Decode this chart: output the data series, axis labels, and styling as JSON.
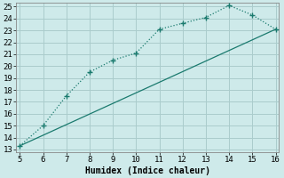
{
  "title": "",
  "xlabel": "Humidex (Indice chaleur)",
  "background_color": "#ceeaea",
  "grid_color": "#aacccc",
  "line_color": "#1a7a6e",
  "series1_x": [
    5,
    6,
    7,
    8,
    9,
    10,
    11,
    12,
    13,
    14,
    15,
    16
  ],
  "series1_y": [
    13.3,
    15.0,
    17.5,
    19.5,
    20.5,
    21.1,
    23.1,
    23.6,
    24.1,
    25.1,
    24.3,
    23.1
  ],
  "series2_x": [
    5,
    16
  ],
  "series2_y": [
    13.3,
    23.1
  ],
  "xlim": [
    5,
    16
  ],
  "ylim": [
    13,
    25
  ],
  "xticks": [
    5,
    6,
    7,
    8,
    9,
    10,
    11,
    12,
    13,
    14,
    15,
    16
  ],
  "yticks": [
    13,
    14,
    15,
    16,
    17,
    18,
    19,
    20,
    21,
    22,
    23,
    24,
    25
  ],
  "tick_fontsize": 6.5,
  "xlabel_fontsize": 7
}
